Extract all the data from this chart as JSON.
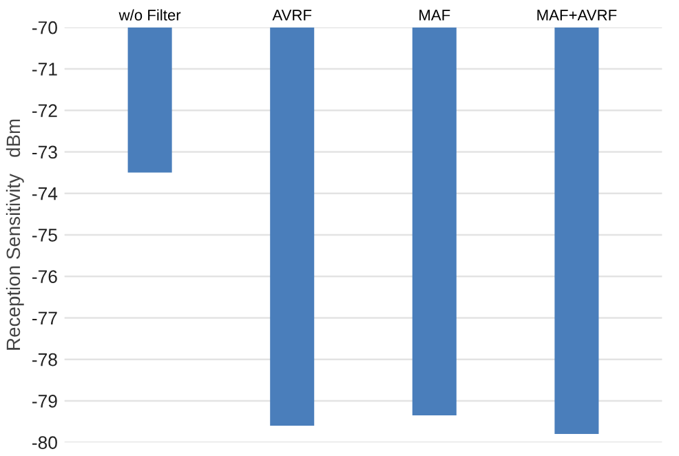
{
  "chart_data": {
    "type": "bar",
    "categories": [
      "w/o Filter",
      "AVRF",
      "MAF",
      "MAF+AVRF"
    ],
    "values": [
      -73.5,
      -79.6,
      -79.35,
      -79.8
    ],
    "color": "#4a7ebb",
    "ylabel": "Reception Sensitivity   dBm",
    "ylim": [
      -80,
      -70
    ],
    "yticks": [
      -70,
      -71,
      -72,
      -73,
      -74,
      -75,
      -76,
      -77,
      -78,
      -79,
      -80
    ],
    "grid": "y"
  }
}
